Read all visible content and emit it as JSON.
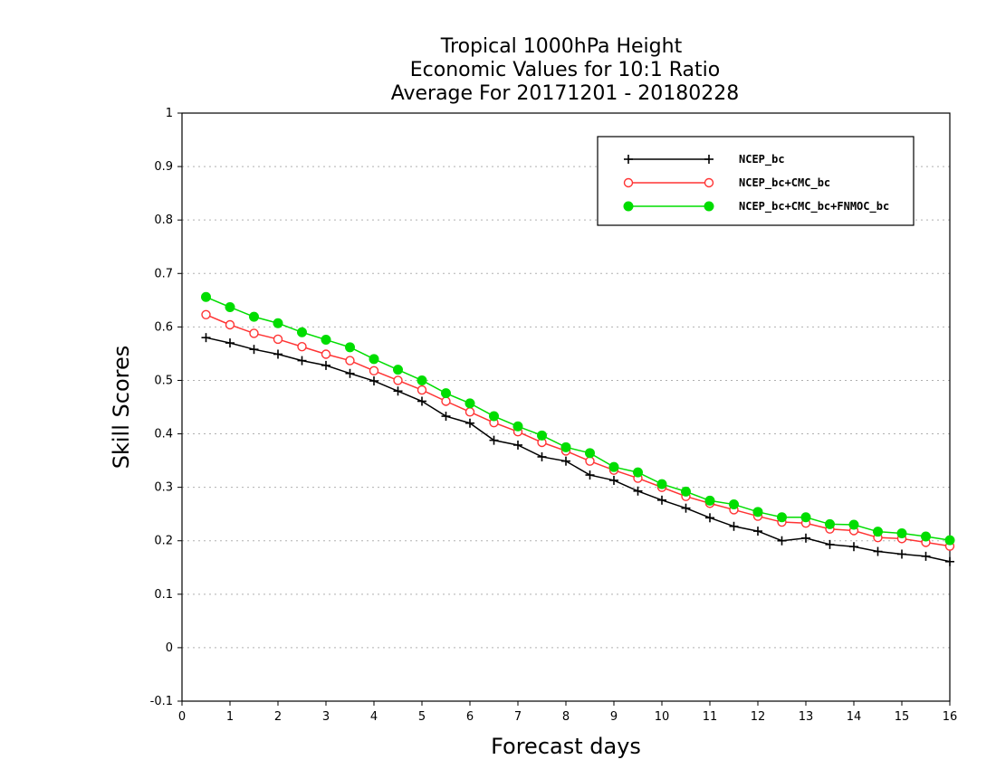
{
  "chart_data": {
    "type": "line",
    "title": [
      "Tropical 1000hPa Height",
      "Economic Values for 10:1 Ratio",
      "Average For 20171201 - 20180228"
    ],
    "xlabel": "Forecast days",
    "ylabel": "Skill Scores",
    "xlim": [
      0,
      16
    ],
    "ylim": [
      -0.1,
      1
    ],
    "xticks": [
      0,
      1,
      2,
      3,
      4,
      5,
      6,
      7,
      8,
      9,
      10,
      11,
      12,
      13,
      14,
      15,
      16
    ],
    "xtick_labels": [
      "0",
      "1",
      "2",
      "3",
      "4",
      "5",
      "6",
      "7",
      "8",
      "9",
      "10",
      "11",
      "12",
      "13",
      "14",
      "15",
      "16"
    ],
    "yticks": [
      -0.1,
      0,
      0.1,
      0.2,
      0.3,
      0.4,
      0.5,
      0.6,
      0.7,
      0.8,
      0.9,
      1
    ],
    "ytick_labels": [
      "-0.1",
      "0",
      "0.1",
      "0.2",
      "0.3",
      "0.4",
      "0.5",
      "0.6",
      "0.7",
      "0.8",
      "0.9",
      "1"
    ],
    "grid": true,
    "legend_position": "top-right",
    "x": [
      0.5,
      1,
      1.5,
      2,
      2.5,
      3,
      3.5,
      4,
      4.5,
      5,
      5.5,
      6,
      6.5,
      7,
      7.5,
      8,
      8.5,
      9,
      9.5,
      10,
      10.5,
      11,
      11.5,
      12,
      12.5,
      13,
      13.5,
      14,
      14.5,
      15,
      15.5,
      16
    ],
    "series": [
      {
        "name": "NCEP_bc",
        "color": "#000000",
        "marker": "plus",
        "values": [
          0.58,
          0.57,
          0.558,
          0.549,
          0.537,
          0.528,
          0.513,
          0.499,
          0.48,
          0.461,
          0.433,
          0.42,
          0.388,
          0.379,
          0.357,
          0.349,
          0.323,
          0.313,
          0.293,
          0.276,
          0.261,
          0.243,
          0.227,
          0.218,
          0.2,
          0.205,
          0.193,
          0.189,
          0.18,
          0.175,
          0.171,
          0.161
        ]
      },
      {
        "name": "NCEP_bc+CMC_bc",
        "color": "#ff3333",
        "marker": "open-circle",
        "values": [
          0.623,
          0.604,
          0.588,
          0.577,
          0.563,
          0.549,
          0.537,
          0.518,
          0.5,
          0.482,
          0.461,
          0.441,
          0.421,
          0.404,
          0.384,
          0.368,
          0.349,
          0.332,
          0.317,
          0.3,
          0.283,
          0.27,
          0.258,
          0.246,
          0.235,
          0.233,
          0.222,
          0.219,
          0.206,
          0.204,
          0.197,
          0.19
        ]
      },
      {
        "name": "NCEP_bc+CMC_bc+FNMOC_bc",
        "color": "#00dd00",
        "marker": "filled-circle",
        "values": [
          0.656,
          0.637,
          0.619,
          0.607,
          0.59,
          0.576,
          0.562,
          0.54,
          0.52,
          0.5,
          0.476,
          0.457,
          0.433,
          0.414,
          0.397,
          0.375,
          0.364,
          0.338,
          0.328,
          0.306,
          0.292,
          0.275,
          0.268,
          0.254,
          0.244,
          0.244,
          0.231,
          0.23,
          0.217,
          0.214,
          0.208,
          0.201
        ]
      }
    ]
  }
}
